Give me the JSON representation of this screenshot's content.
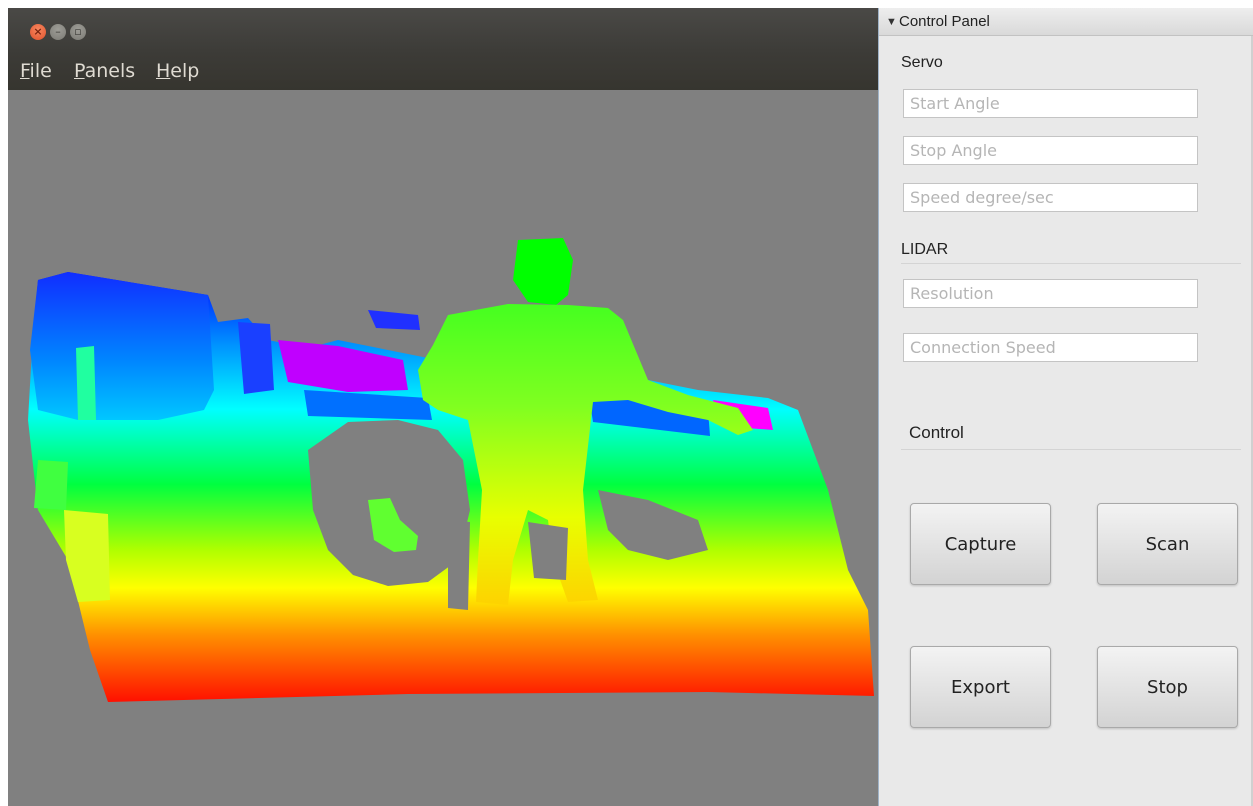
{
  "window": {
    "controls": [
      "close-icon",
      "minimize-icon",
      "maximize-icon"
    ],
    "close_glyph": "×",
    "min_glyph": "–",
    "max_glyph": "▫"
  },
  "menubar": {
    "items": [
      {
        "mnemonic": "F",
        "rest": "ile"
      },
      {
        "mnemonic": "P",
        "rest": "anels"
      },
      {
        "mnemonic": "H",
        "rest": "elp"
      }
    ]
  },
  "viewport": {
    "background_color": "#808080",
    "colormap": [
      "#ff0000",
      "#ff8000",
      "#ffff00",
      "#00ff00",
      "#00ffff",
      "#0080ff",
      "#0000ff",
      "#ff00ff"
    ]
  },
  "control_panel": {
    "title": "Control Panel",
    "collapse_glyph": "▼",
    "servo": {
      "title": "Servo",
      "start_angle_placeholder": "Start Angle",
      "stop_angle_placeholder": "Stop Angle",
      "speed_placeholder": "Speed degree/sec"
    },
    "lidar": {
      "title": "LIDAR",
      "resolution_placeholder": "Resolution",
      "connection_speed_placeholder": "Connection Speed"
    },
    "control": {
      "title": "Control",
      "capture_label": "Capture",
      "scan_label": "Scan",
      "export_label": "Export",
      "stop_label": "Stop"
    }
  }
}
